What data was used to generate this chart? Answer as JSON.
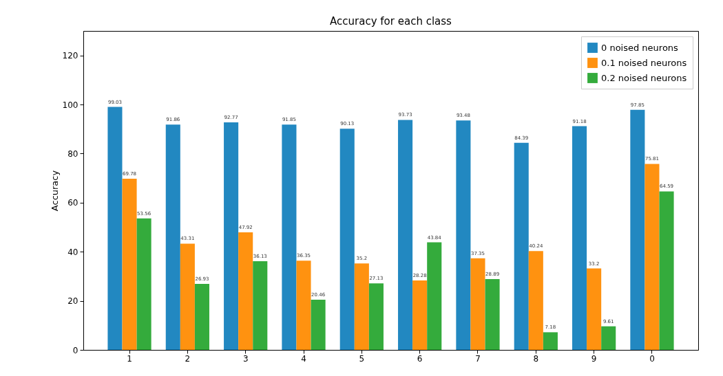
{
  "chart_data": {
    "type": "bar",
    "title": "Accuracy for each class",
    "ylabel": "Accuracy",
    "categories": [
      "1",
      "2",
      "3",
      "4",
      "5",
      "6",
      "7",
      "8",
      "9",
      "0"
    ],
    "series": [
      {
        "name": "0 noised neurons",
        "color": "#2288c1",
        "values": [
          99.03,
          91.86,
          92.77,
          91.85,
          90.13,
          93.73,
          93.48,
          84.39,
          91.18,
          97.85
        ]
      },
      {
        "name": "0.1 noised neurons",
        "color": "#ff9210",
        "values": [
          69.78,
          43.31,
          47.92,
          36.35,
          35.2,
          28.28,
          37.35,
          40.24,
          33.2,
          75.81
        ]
      },
      {
        "name": "0.2 noised neurons",
        "color": "#34ab3c",
        "values": [
          53.56,
          26.93,
          36.13,
          20.46,
          27.13,
          43.84,
          28.89,
          7.18,
          9.61,
          64.59
        ]
      }
    ],
    "ylim": [
      0,
      130
    ],
    "yticks": [
      0,
      20,
      40,
      60,
      80,
      100,
      120
    ],
    "data_labels": true,
    "legend": "top right",
    "grid": false
  }
}
